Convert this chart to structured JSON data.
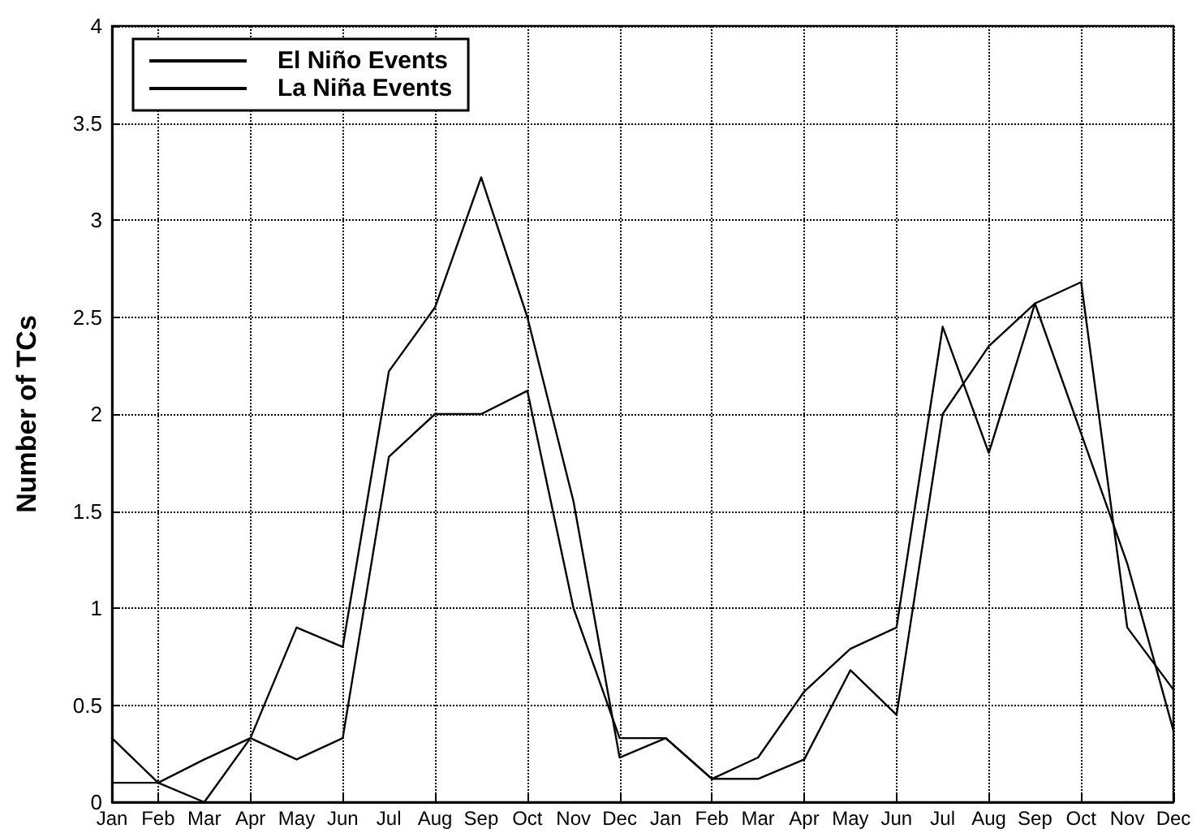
{
  "chart_data": {
    "type": "line",
    "ylabel": "Number of TCs",
    "categories": [
      "Jan",
      "Feb",
      "Mar",
      "Apr",
      "May",
      "Jun",
      "Jul",
      "Aug",
      "Sep",
      "Oct",
      "Nov",
      "Dec",
      "Jan",
      "Feb",
      "Mar",
      "Apr",
      "May",
      "Jun",
      "Jul",
      "Aug",
      "Sep",
      "Oct",
      "Nov",
      "Dec"
    ],
    "series": [
      {
        "name": "El Niño Events",
        "color": "#000000",
        "values": [
          0.33,
          0.1,
          0,
          0.33,
          0.9,
          0.8,
          2.22,
          2.55,
          3.22,
          2.5,
          1.55,
          0.23,
          0.33,
          0.12,
          0.23,
          0.57,
          0.79,
          0.9,
          2.45,
          1.8,
          2.57,
          1.9,
          1.23,
          0.37
        ]
      },
      {
        "name": "La Niña Events",
        "color": "#000000",
        "values": [
          0.1,
          0.1,
          0.22,
          0.33,
          0.22,
          0.33,
          1.78,
          2.0,
          2.0,
          2.12,
          1.0,
          0.33,
          0.33,
          0.12,
          0.12,
          0.22,
          0.68,
          0.45,
          2.0,
          2.35,
          2.57,
          2.68,
          0.9,
          0.58
        ]
      }
    ],
    "ylim": [
      0,
      4
    ],
    "yticks": [
      0,
      0.5,
      1,
      1.5,
      2,
      2.5,
      3,
      3.5,
      4
    ],
    "grid": true,
    "legend": "top left",
    "marker": "none",
    "line_style": "solid"
  }
}
